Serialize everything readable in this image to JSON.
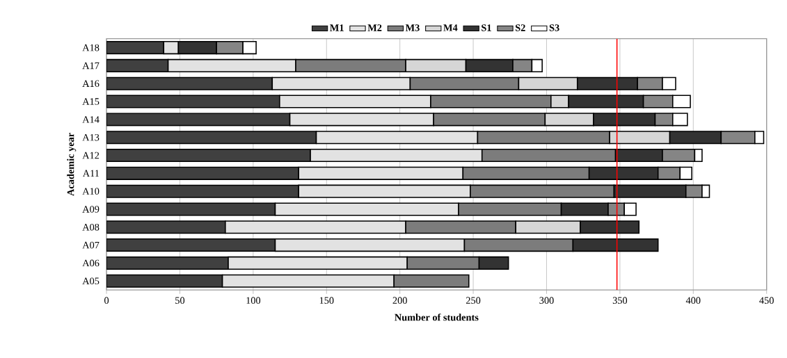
{
  "chart_data": {
    "type": "bar",
    "orientation": "horizontal",
    "stacked": true,
    "xlabel": "Number of students",
    "ylabel": "Academic year",
    "categories": [
      "A18",
      "A17",
      "A16",
      "A15",
      "A14",
      "A13",
      "A12",
      "A11",
      "A10",
      "A09",
      "A08",
      "A07",
      "A06",
      "A05"
    ],
    "series": [
      {
        "name": "M1",
        "color": "#404040",
        "values": [
          39,
          42,
          113,
          118,
          125,
          143,
          139,
          131,
          131,
          115,
          81,
          115,
          83,
          79
        ]
      },
      {
        "name": "M2",
        "color": "#e2e2e2",
        "values": [
          10,
          87,
          94,
          103,
          98,
          110,
          117,
          112,
          117,
          125,
          123,
          129,
          122,
          117
        ]
      },
      {
        "name": "M3",
        "color": "#7c7c7c",
        "values": [
          null,
          75,
          74,
          82,
          76,
          90,
          91,
          86,
          98,
          70,
          75,
          74,
          49,
          51
        ]
      },
      {
        "name": "M4",
        "color": "#d6d6d6",
        "values": [
          null,
          41,
          40,
          12,
          33,
          41,
          null,
          null,
          null,
          null,
          44,
          null,
          null,
          null
        ]
      },
      {
        "name": "S1",
        "color": "#333333",
        "values": [
          26,
          32,
          41,
          51,
          42,
          35,
          32,
          47,
          49,
          32,
          40,
          58,
          20,
          null
        ]
      },
      {
        "name": "S2",
        "color": "#858585",
        "values": [
          18,
          13,
          17,
          20,
          12,
          23,
          22,
          15,
          11,
          11,
          null,
          null,
          null,
          null
        ]
      },
      {
        "name": "S3",
        "color": "#ffffff",
        "values": [
          9,
          7,
          9,
          12,
          10,
          6,
          5,
          8,
          5,
          8,
          null,
          null,
          null,
          null
        ]
      }
    ],
    "xlim": [
      0,
      450
    ],
    "xticks": [
      0,
      50,
      100,
      150,
      200,
      250,
      300,
      350,
      400,
      450
    ],
    "grid": "x",
    "legend": "top",
    "ref_lines": [
      {
        "axis": "x",
        "value": 348,
        "color": "#ff0000"
      }
    ]
  }
}
